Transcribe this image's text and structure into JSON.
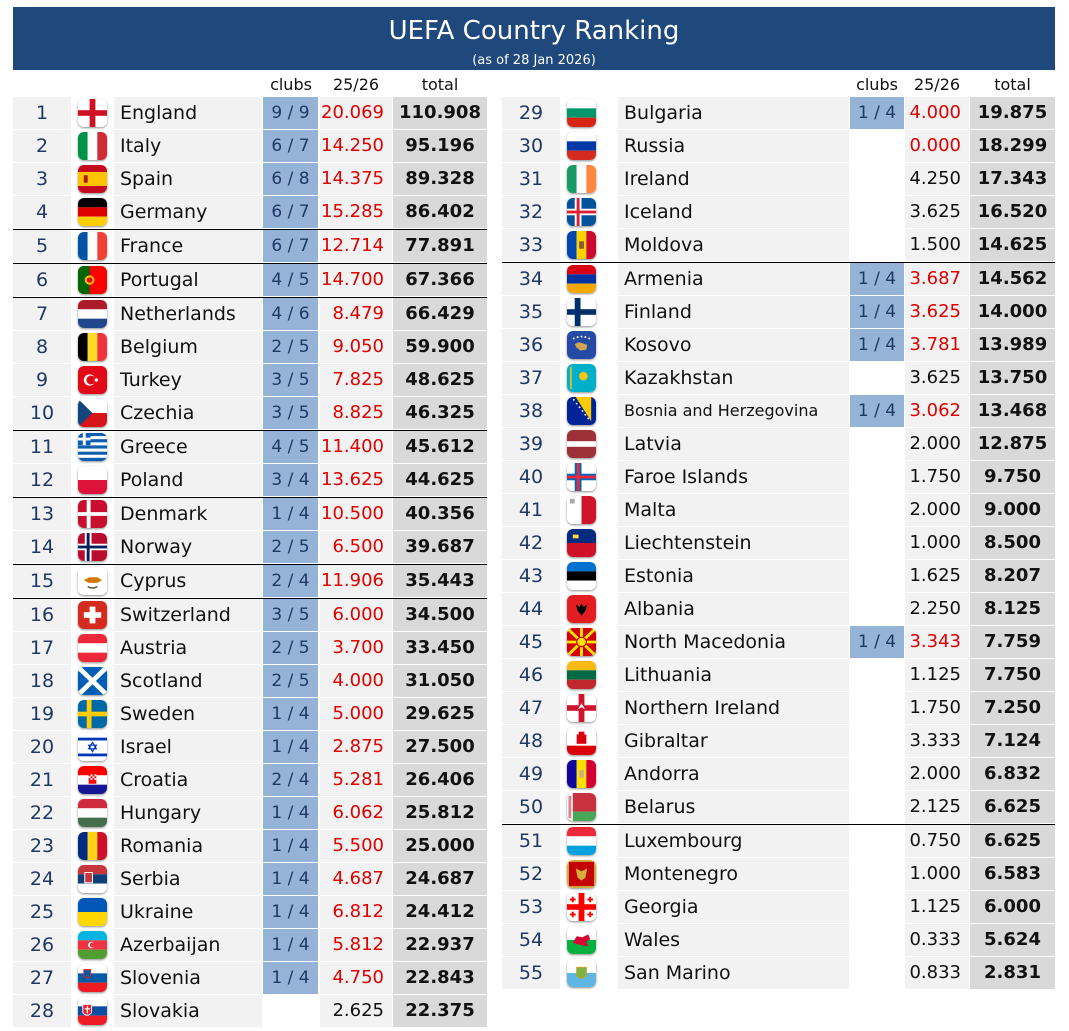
{
  "header": {
    "title": "UEFA Country Ranking",
    "subtitle": "(as of 28 Jan 2026)"
  },
  "columns": {
    "clubs": "clubs",
    "season": "25/26",
    "total": "total"
  },
  "left": [
    {
      "rank": "1",
      "country": "England",
      "flag": "england",
      "clubs": "9 / 9",
      "season": "20.069",
      "total": "110.908",
      "highlight": true,
      "red": true
    },
    {
      "rank": "2",
      "country": "Italy",
      "flag": "italy",
      "clubs": "6 / 7",
      "season": "14.250",
      "total": "95.196",
      "highlight": true,
      "red": true
    },
    {
      "rank": "3",
      "country": "Spain",
      "flag": "spain",
      "clubs": "6 / 8",
      "season": "14.375",
      "total": "89.328",
      "highlight": true,
      "red": true
    },
    {
      "rank": "4",
      "country": "Germany",
      "flag": "germany",
      "clubs": "6 / 7",
      "season": "15.285",
      "total": "86.402",
      "highlight": true,
      "red": true
    },
    {
      "rank": "5",
      "country": "France",
      "flag": "france",
      "clubs": "6 / 7",
      "season": "12.714",
      "total": "77.891",
      "highlight": true,
      "red": true,
      "sep": true
    },
    {
      "rank": "6",
      "country": "Portugal",
      "flag": "portugal",
      "clubs": "4 / 5",
      "season": "14.700",
      "total": "67.366",
      "highlight": true,
      "red": true,
      "sep": true
    },
    {
      "rank": "7",
      "country": "Netherlands",
      "flag": "netherlands",
      "clubs": "4 / 6",
      "season": "8.479",
      "total": "66.429",
      "highlight": true,
      "red": true,
      "sep": true
    },
    {
      "rank": "8",
      "country": "Belgium",
      "flag": "belgium",
      "clubs": "2 / 5",
      "season": "9.050",
      "total": "59.900",
      "highlight": true,
      "red": true
    },
    {
      "rank": "9",
      "country": "Turkey",
      "flag": "turkey",
      "clubs": "3 / 5",
      "season": "7.825",
      "total": "48.625",
      "highlight": true,
      "red": true
    },
    {
      "rank": "10",
      "country": "Czechia",
      "flag": "czechia",
      "clubs": "3 / 5",
      "season": "8.825",
      "total": "46.325",
      "highlight": true,
      "red": true
    },
    {
      "rank": "11",
      "country": "Greece",
      "flag": "greece",
      "clubs": "4 / 5",
      "season": "11.400",
      "total": "45.612",
      "highlight": true,
      "red": true,
      "sep": true
    },
    {
      "rank": "12",
      "country": "Poland",
      "flag": "poland",
      "clubs": "3 / 4",
      "season": "13.625",
      "total": "44.625",
      "highlight": true,
      "red": true
    },
    {
      "rank": "13",
      "country": "Denmark",
      "flag": "denmark",
      "clubs": "1 / 4",
      "season": "10.500",
      "total": "40.356",
      "highlight": true,
      "red": true,
      "sep": true
    },
    {
      "rank": "14",
      "country": "Norway",
      "flag": "norway",
      "clubs": "2 / 5",
      "season": "6.500",
      "total": "39.687",
      "highlight": true,
      "red": true
    },
    {
      "rank": "15",
      "country": "Cyprus",
      "flag": "cyprus",
      "clubs": "2 / 4",
      "season": "11.906",
      "total": "35.443",
      "highlight": true,
      "red": true,
      "sep": true
    },
    {
      "rank": "16",
      "country": "Switzerland",
      "flag": "switzerland",
      "clubs": "3 / 5",
      "season": "6.000",
      "total": "34.500",
      "highlight": true,
      "red": true,
      "sep": true
    },
    {
      "rank": "17",
      "country": "Austria",
      "flag": "austria",
      "clubs": "2 / 5",
      "season": "3.700",
      "total": "33.450",
      "highlight": true,
      "red": true
    },
    {
      "rank": "18",
      "country": "Scotland",
      "flag": "scotland",
      "clubs": "2 / 5",
      "season": "4.000",
      "total": "31.050",
      "highlight": true,
      "red": true
    },
    {
      "rank": "19",
      "country": "Sweden",
      "flag": "sweden",
      "clubs": "1 / 4",
      "season": "5.000",
      "total": "29.625",
      "highlight": true,
      "red": true
    },
    {
      "rank": "20",
      "country": "Israel",
      "flag": "israel",
      "clubs": "1 / 4",
      "season": "2.875",
      "total": "27.500",
      "highlight": true,
      "red": true
    },
    {
      "rank": "21",
      "country": "Croatia",
      "flag": "croatia",
      "clubs": "2 / 4",
      "season": "5.281",
      "total": "26.406",
      "highlight": true,
      "red": true
    },
    {
      "rank": "22",
      "country": "Hungary",
      "flag": "hungary",
      "clubs": "1 / 4",
      "season": "6.062",
      "total": "25.812",
      "highlight": true,
      "red": true
    },
    {
      "rank": "23",
      "country": "Romania",
      "flag": "romania",
      "clubs": "1 / 4",
      "season": "5.500",
      "total": "25.000",
      "highlight": true,
      "red": true
    },
    {
      "rank": "24",
      "country": "Serbia",
      "flag": "serbia",
      "clubs": "1 / 4",
      "season": "4.687",
      "total": "24.687",
      "highlight": true,
      "red": true
    },
    {
      "rank": "25",
      "country": "Ukraine",
      "flag": "ukraine",
      "clubs": "1 / 4",
      "season": "6.812",
      "total": "24.412",
      "highlight": true,
      "red": true
    },
    {
      "rank": "26",
      "country": "Azerbaijan",
      "flag": "azerbaijan",
      "clubs": "1 / 4",
      "season": "5.812",
      "total": "22.937",
      "highlight": true,
      "red": true
    },
    {
      "rank": "27",
      "country": "Slovenia",
      "flag": "slovenia",
      "clubs": "1 / 4",
      "season": "4.750",
      "total": "22.843",
      "highlight": true,
      "red": true
    },
    {
      "rank": "28",
      "country": "Slovakia",
      "flag": "slovakia",
      "clubs": "",
      "season": "2.625",
      "total": "22.375",
      "highlight": false,
      "red": false
    }
  ],
  "right": [
    {
      "rank": "29",
      "country": "Bulgaria",
      "flag": "bulgaria",
      "clubs": "1 / 4",
      "season": "4.000",
      "total": "19.875",
      "highlight": true,
      "red": true
    },
    {
      "rank": "30",
      "country": "Russia",
      "flag": "russia",
      "clubs": "",
      "season": "0.000",
      "total": "18.299",
      "highlight": false,
      "red": true
    },
    {
      "rank": "31",
      "country": "Ireland",
      "flag": "ireland",
      "clubs": "",
      "season": "4.250",
      "total": "17.343",
      "highlight": false,
      "red": false
    },
    {
      "rank": "32",
      "country": "Iceland",
      "flag": "iceland",
      "clubs": "",
      "season": "3.625",
      "total": "16.520",
      "highlight": false,
      "red": false
    },
    {
      "rank": "33",
      "country": "Moldova",
      "flag": "moldova",
      "clubs": "",
      "season": "1.500",
      "total": "14.625",
      "highlight": false,
      "red": false
    },
    {
      "rank": "34",
      "country": "Armenia",
      "flag": "armenia",
      "clubs": "1 / 4",
      "season": "3.687",
      "total": "14.562",
      "highlight": true,
      "red": true,
      "sep": true
    },
    {
      "rank": "35",
      "country": "Finland",
      "flag": "finland",
      "clubs": "1 / 4",
      "season": "3.625",
      "total": "14.000",
      "highlight": true,
      "red": true
    },
    {
      "rank": "36",
      "country": "Kosovo",
      "flag": "kosovo",
      "clubs": "1 / 4",
      "season": "3.781",
      "total": "13.989",
      "highlight": true,
      "red": true
    },
    {
      "rank": "37",
      "country": "Kazakhstan",
      "flag": "kazakhstan",
      "clubs": "",
      "season": "3.625",
      "total": "13.750",
      "highlight": false,
      "red": false
    },
    {
      "rank": "38",
      "country": "Bosnia and Herzegovina",
      "flag": "bosnia",
      "clubs": "1 / 4",
      "season": "3.062",
      "total": "13.468",
      "highlight": true,
      "red": true,
      "small": true
    },
    {
      "rank": "39",
      "country": "Latvia",
      "flag": "latvia",
      "clubs": "",
      "season": "2.000",
      "total": "12.875",
      "highlight": false,
      "red": false
    },
    {
      "rank": "40",
      "country": "Faroe Islands",
      "flag": "faroe",
      "clubs": "",
      "season": "1.750",
      "total": "9.750",
      "highlight": false,
      "red": false
    },
    {
      "rank": "41",
      "country": "Malta",
      "flag": "malta",
      "clubs": "",
      "season": "2.000",
      "total": "9.000",
      "highlight": false,
      "red": false
    },
    {
      "rank": "42",
      "country": "Liechtenstein",
      "flag": "liechtenstein",
      "clubs": "",
      "season": "1.000",
      "total": "8.500",
      "highlight": false,
      "red": false
    },
    {
      "rank": "43",
      "country": "Estonia",
      "flag": "estonia",
      "clubs": "",
      "season": "1.625",
      "total": "8.207",
      "highlight": false,
      "red": false
    },
    {
      "rank": "44",
      "country": "Albania",
      "flag": "albania",
      "clubs": "",
      "season": "2.250",
      "total": "8.125",
      "highlight": false,
      "red": false
    },
    {
      "rank": "45",
      "country": "North Macedonia",
      "flag": "macedonia",
      "clubs": "1 / 4",
      "season": "3.343",
      "total": "7.759",
      "highlight": true,
      "red": true
    },
    {
      "rank": "46",
      "country": "Lithuania",
      "flag": "lithuania",
      "clubs": "",
      "season": "1.125",
      "total": "7.750",
      "highlight": false,
      "red": false
    },
    {
      "rank": "47",
      "country": "Northern Ireland",
      "flag": "nireland",
      "clubs": "",
      "season": "1.750",
      "total": "7.250",
      "highlight": false,
      "red": false
    },
    {
      "rank": "48",
      "country": "Gibraltar",
      "flag": "gibraltar",
      "clubs": "",
      "season": "3.333",
      "total": "7.124",
      "highlight": false,
      "red": false
    },
    {
      "rank": "49",
      "country": "Andorra",
      "flag": "andorra",
      "clubs": "",
      "season": "2.000",
      "total": "6.832",
      "highlight": false,
      "red": false
    },
    {
      "rank": "50",
      "country": "Belarus",
      "flag": "belarus",
      "clubs": "",
      "season": "2.125",
      "total": "6.625",
      "highlight": false,
      "red": false
    },
    {
      "rank": "51",
      "country": "Luxembourg",
      "flag": "luxembourg",
      "clubs": "",
      "season": "0.750",
      "total": "6.625",
      "highlight": false,
      "red": false,
      "sep": true
    },
    {
      "rank": "52",
      "country": "Montenegro",
      "flag": "montenegro",
      "clubs": "",
      "season": "1.000",
      "total": "6.583",
      "highlight": false,
      "red": false
    },
    {
      "rank": "53",
      "country": "Georgia",
      "flag": "georgia",
      "clubs": "",
      "season": "1.125",
      "total": "6.000",
      "highlight": false,
      "red": false
    },
    {
      "rank": "54",
      "country": "Wales",
      "flag": "wales",
      "clubs": "",
      "season": "0.333",
      "total": "5.624",
      "highlight": false,
      "red": false
    },
    {
      "rank": "55",
      "country": "San Marino",
      "flag": "sanmarino",
      "clubs": "",
      "season": "0.833",
      "total": "2.831",
      "highlight": false,
      "red": false
    }
  ]
}
